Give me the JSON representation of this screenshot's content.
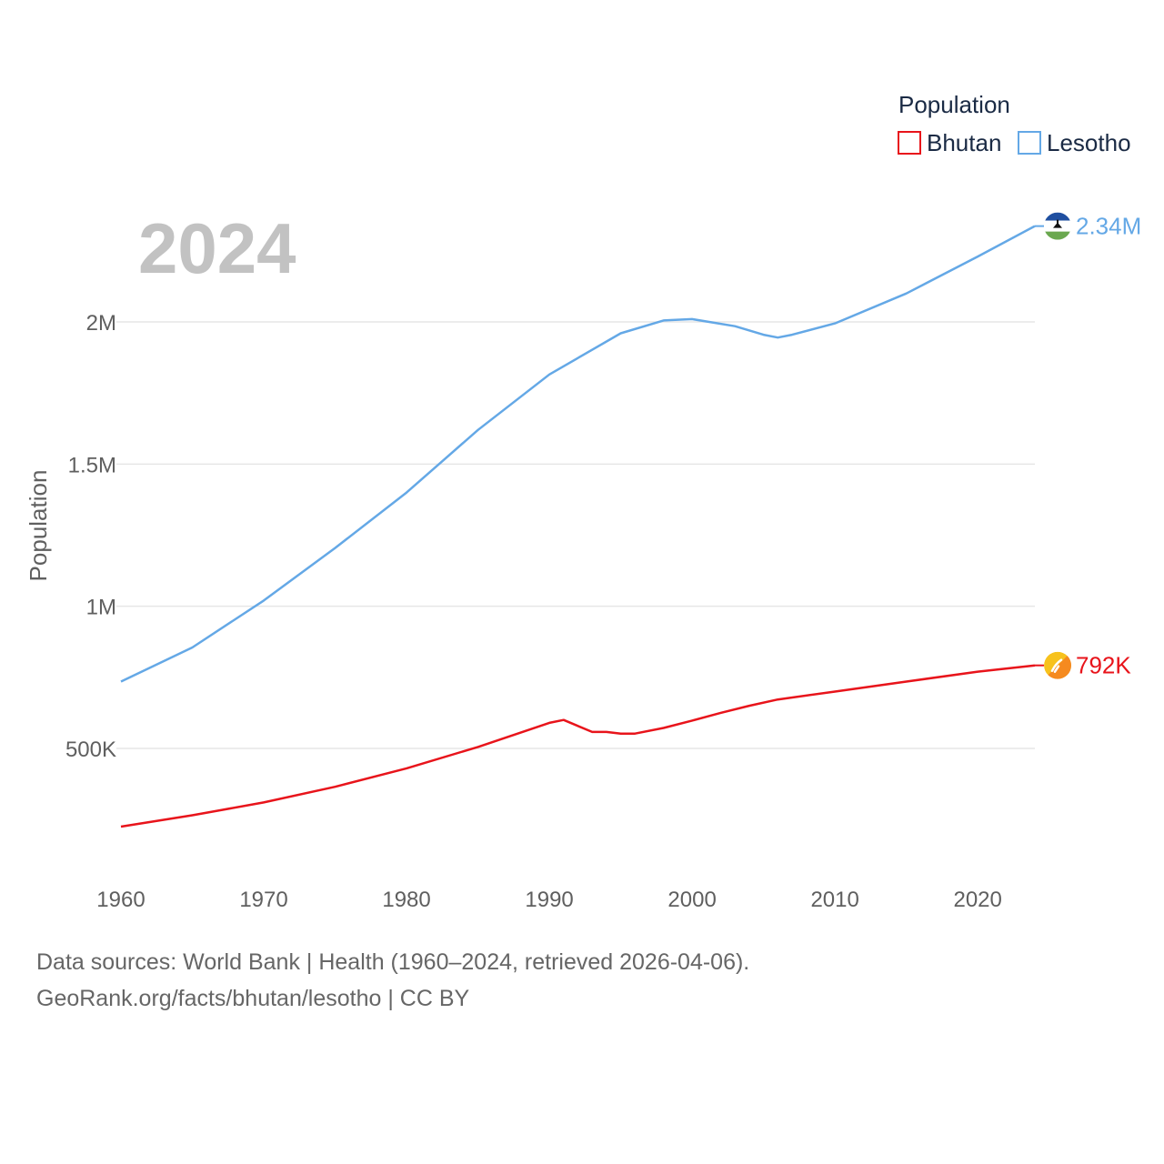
{
  "chart_data": {
    "type": "line",
    "title": "",
    "year_label": "2024",
    "xlabel": "",
    "ylabel": "Population",
    "xlim": [
      1960,
      2024
    ],
    "ylim": [
      150000,
      2500000
    ],
    "x_ticks": [
      1960,
      1970,
      1980,
      1990,
      2000,
      2010,
      2020
    ],
    "x_tick_labels": [
      "1960",
      "1970",
      "1980",
      "1990",
      "2000",
      "2010",
      "2020"
    ],
    "y_ticks": [
      500000,
      1000000,
      1500000,
      2000000
    ],
    "y_tick_labels": [
      "500K",
      "1M",
      "1.5M",
      "2M"
    ],
    "legend": {
      "title": "Population",
      "position": "top-right"
    },
    "series": [
      {
        "name": "Bhutan",
        "color": "#e8141b",
        "end_label": "792K",
        "flag_icon": "bhutan-flag-icon",
        "points": [
          [
            1960,
            225000
          ],
          [
            1965,
            265000
          ],
          [
            1970,
            310000
          ],
          [
            1975,
            365000
          ],
          [
            1980,
            430000
          ],
          [
            1985,
            505000
          ],
          [
            1990,
            590000
          ],
          [
            1991,
            600000
          ],
          [
            1993,
            558000
          ],
          [
            1994,
            558000
          ],
          [
            1995,
            552000
          ],
          [
            1996,
            552000
          ],
          [
            1998,
            572000
          ],
          [
            2000,
            598000
          ],
          [
            2002,
            625000
          ],
          [
            2004,
            650000
          ],
          [
            2006,
            672000
          ],
          [
            2010,
            700000
          ],
          [
            2015,
            735000
          ],
          [
            2020,
            770000
          ],
          [
            2024,
            792000
          ]
        ]
      },
      {
        "name": "Lesotho",
        "color": "#64a8e6",
        "end_label": "2.34M",
        "flag_icon": "lesotho-flag-icon",
        "points": [
          [
            1960,
            735000
          ],
          [
            1965,
            855000
          ],
          [
            1970,
            1020000
          ],
          [
            1975,
            1205000
          ],
          [
            1980,
            1400000
          ],
          [
            1985,
            1620000
          ],
          [
            1990,
            1815000
          ],
          [
            1995,
            1960000
          ],
          [
            1998,
            2005000
          ],
          [
            2000,
            2010000
          ],
          [
            2003,
            1985000
          ],
          [
            2005,
            1955000
          ],
          [
            2006,
            1945000
          ],
          [
            2007,
            1955000
          ],
          [
            2010,
            1995000
          ],
          [
            2015,
            2100000
          ],
          [
            2020,
            2230000
          ],
          [
            2024,
            2337000
          ]
        ]
      }
    ]
  },
  "footer": {
    "sources": "Data sources: World Bank | Health (1960–2024, retrieved 2026-04-06).",
    "credit": "GeoRank.org/facts/bhutan/lesotho | CC BY"
  }
}
